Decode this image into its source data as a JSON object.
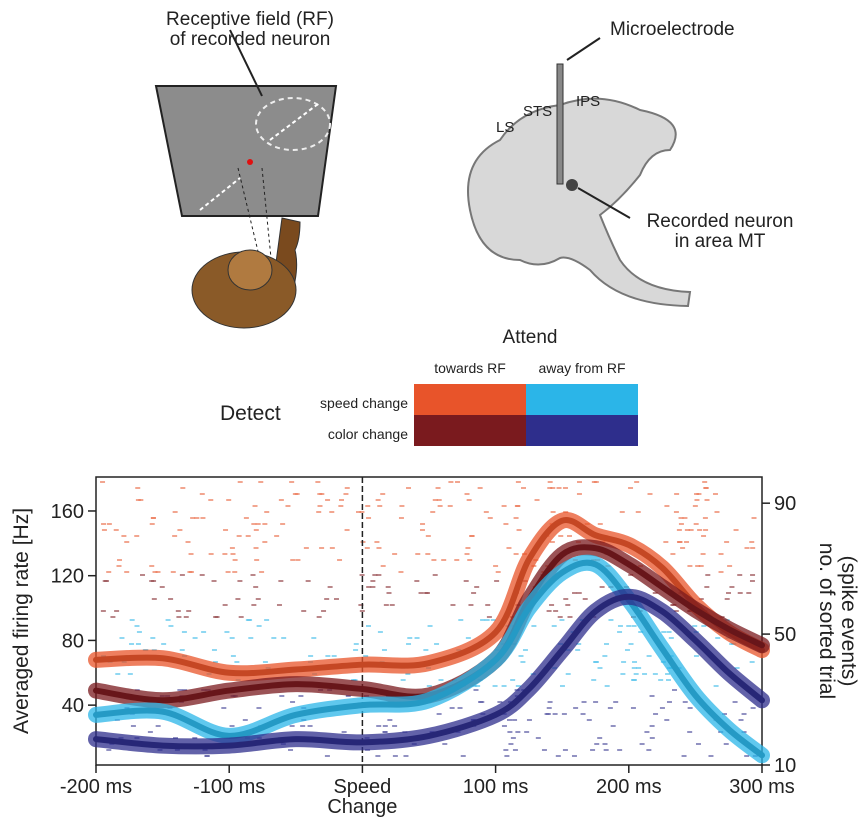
{
  "illustration": {
    "rf_label": [
      "Receptive field (RF)",
      "of recorded neuron"
    ],
    "electrode_label": "Microelectrode",
    "sulci": [
      "LS",
      "STS",
      "IPS"
    ],
    "neuron_label": [
      "Recorded neuron",
      "in area MT"
    ]
  },
  "condition_legend": {
    "title": "Attend",
    "columns": [
      "towards RF",
      "away from RF"
    ],
    "row_title": "Detect",
    "rows": [
      "speed change",
      "color change"
    ]
  },
  "chart_data": {
    "type": "line",
    "ylabel": "Averaged firing rate [Hz]",
    "y2label": [
      "no. of sorted trial",
      "(spike events)"
    ],
    "x": [
      -200,
      -150,
      -100,
      -50,
      0,
      50,
      100,
      125,
      150,
      175,
      200,
      225,
      250,
      275,
      300
    ],
    "series": [
      {
        "color": "#e8542a",
        "values": [
          68,
          69,
          60,
          62,
          65,
          66,
          85,
          130,
          154,
          145,
          139,
          125,
          102,
          85,
          74
        ]
      },
      {
        "color": "#7a1a1e",
        "values": [
          49,
          43,
          49,
          53,
          50,
          46,
          68,
          105,
          133,
          137,
          127,
          113,
          99,
          87,
          77
        ]
      },
      {
        "color": "#2bb5e8",
        "values": [
          34,
          36,
          21,
          34,
          40,
          43,
          68,
          100,
          122,
          127,
          105,
          75,
          46,
          25,
          9
        ]
      },
      {
        "color": "#2e2e8c",
        "values": [
          19,
          15,
          15,
          19,
          17,
          21,
          34,
          50,
          74,
          98,
          107,
          98,
          80,
          60,
          43
        ]
      }
    ],
    "xlim": [
      -200,
      300
    ],
    "xticks": [
      {
        "value": -200,
        "label": "-200 ms"
      },
      {
        "value": -100,
        "label": "-100 ms"
      },
      {
        "value": 0,
        "label": "Speed Change"
      },
      {
        "value": 100,
        "label": "100 ms"
      },
      {
        "value": 200,
        "label": "200 ms"
      },
      {
        "value": 300,
        "label": "300 ms"
      }
    ],
    "ylim": [
      3,
      181
    ],
    "yticks": [
      40,
      80,
      120,
      160
    ],
    "y2lim": [
      10,
      98
    ],
    "y2ticks": [
      10,
      50,
      90
    ]
  }
}
